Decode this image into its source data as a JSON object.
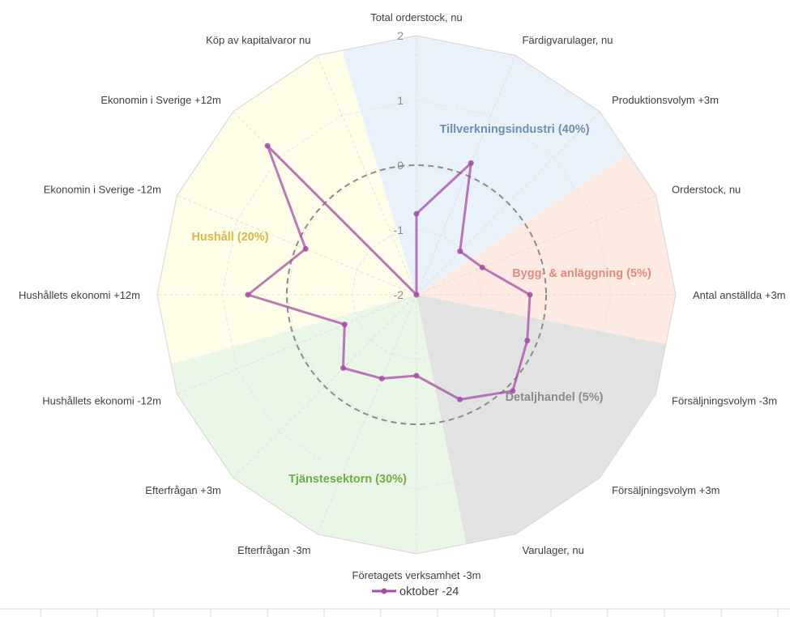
{
  "chart_data": {
    "type": "radar",
    "axes": [
      "Total orderstock, nu",
      "Färdigvarulager, nu",
      "Produktionsvolym +3m",
      "Orderstock, nu",
      "Antal anställda +3m",
      "Försäljningsvolym -3m",
      "Försäljningsvolym +3m",
      "Varulager, nu",
      "Företagets verksamhet -3m",
      "Efterfrågan -3m",
      "Efterfrågan +3m",
      "Hushållets ekonomi -12m",
      "Hushållets ekonomi +12m",
      "Ekonomin i Sverige -12m",
      "Ekonomin i Sverige +12m",
      "Köp av kapitalvaror nu"
    ],
    "ticks": [
      "-2",
      "-1",
      "0",
      "1",
      "2"
    ],
    "range": [
      -2,
      2
    ],
    "series": [
      {
        "name": "oktober -24",
        "color": "#a64ca6",
        "values": [
          -0.75,
          0.2,
          -1.05,
          -0.9,
          -0.25,
          -0.15,
          0.1,
          -0.25,
          -0.75,
          -0.6,
          -0.4,
          -0.8,
          0.6,
          -0.15,
          1.25,
          -2.0
        ]
      }
    ],
    "sectors": [
      {
        "label": "Tillverkningsindustri (40%)",
        "fill": "#e9f1fa",
        "text_color": "#6f8fb3"
      },
      {
        "label": "Bygg- & anläggning (5%)",
        "fill": "#fdeae3",
        "text_color": "#e58a7a"
      },
      {
        "label": "Detaljhandel (5%)",
        "fill": "#e2e2e2",
        "text_color": "#8c8c8c"
      },
      {
        "label": "Tjänstesektorn (30%)",
        "fill": "#eaf6e6",
        "text_color": "#70ad47"
      },
      {
        "label": "Hushåll (20%)",
        "fill": "#fefee8",
        "text_color": "#d9b845"
      }
    ],
    "dashed_circle_value": 0,
    "legend": "bottom"
  }
}
